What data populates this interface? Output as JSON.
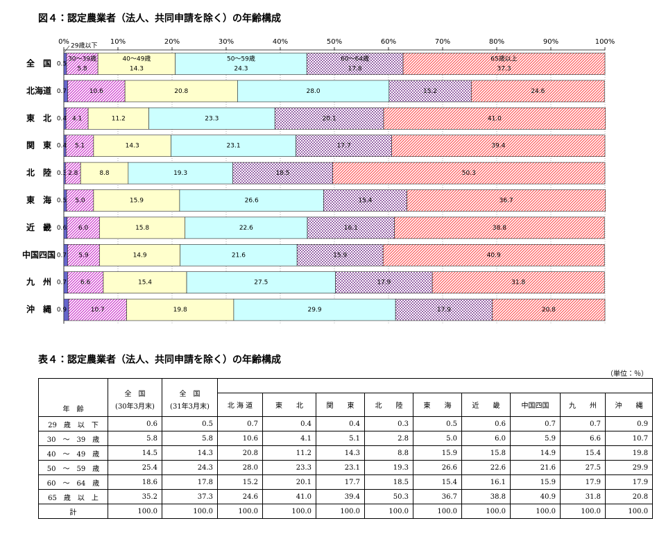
{
  "chart_data": {
    "type": "stacked-bar-horizontal",
    "title": "図４：認定農業者（法人、共同申請を除く）の年齢構成",
    "categories": [
      "全　国",
      "北海道",
      "東　北",
      "関　東",
      "北　陸",
      "東　海",
      "近　畿",
      "中国四国",
      "九　州",
      "沖　縄"
    ],
    "xlim": [
      0,
      100
    ],
    "xticks": [
      {
        "value": 0,
        "label": "0%"
      },
      {
        "value": 10,
        "label": "10%"
      },
      {
        "value": 20,
        "label": "20%"
      },
      {
        "value": 30,
        "label": "30%"
      },
      {
        "value": 40,
        "label": "40%"
      },
      {
        "value": 50,
        "label": "50%"
      },
      {
        "value": 60,
        "label": "60%"
      },
      {
        "value": 70,
        "label": "70%"
      },
      {
        "value": 80,
        "label": "80%"
      },
      {
        "value": 90,
        "label": "90%"
      },
      {
        "value": 100,
        "label": "100%"
      }
    ],
    "grid": true,
    "series": [
      {
        "name": "29歳以下",
        "color": "#6666cc",
        "pattern": null,
        "values": [
          0.5,
          0.7,
          0.4,
          0.4,
          0.3,
          0.5,
          0.6,
          0.7,
          0.7,
          0.9
        ],
        "value_labels": [
          "0.5",
          "0.7",
          "0.4",
          "0.4",
          "0.3",
          "0.5",
          "0.6",
          "0.7",
          "0.7",
          "0.9"
        ]
      },
      {
        "name": "30～39歳",
        "color": "#cc33cc",
        "pattern": "hatch",
        "values": [
          5.8,
          10.6,
          4.1,
          5.1,
          2.8,
          5.0,
          6.0,
          5.9,
          6.6,
          10.7
        ],
        "value_labels": [
          "5.8",
          "10.6",
          "4.1",
          "5.1",
          "2.8",
          "5.0",
          "6.0",
          "5.9",
          "6.6",
          "10.7"
        ]
      },
      {
        "name": "40～49歳",
        "color": "#ffffcc",
        "pattern": null,
        "values": [
          14.3,
          20.8,
          11.2,
          14.3,
          8.8,
          15.9,
          15.8,
          14.9,
          15.4,
          19.8
        ],
        "value_labels": [
          "14.3",
          "20.8",
          "11.2",
          "14.3",
          "8.8",
          "15.9",
          "15.8",
          "14.9",
          "15.4",
          "19.8"
        ]
      },
      {
        "name": "50～59歳",
        "color": "#ccffff",
        "pattern": null,
        "values": [
          24.3,
          28.0,
          23.3,
          23.1,
          19.3,
          26.6,
          22.6,
          21.6,
          27.5,
          29.9
        ],
        "value_labels": [
          "24.3",
          "28.0",
          "23.3",
          "23.1",
          "19.3",
          "26.6",
          "22.6",
          "21.6",
          "27.5",
          "29.9"
        ]
      },
      {
        "name": "60～64歳",
        "color": "#9966aa",
        "pattern": "dots",
        "values": [
          17.8,
          15.2,
          20.1,
          17.7,
          18.5,
          15.4,
          16.1,
          15.9,
          17.9,
          17.9
        ],
        "value_labels": [
          "17.8",
          "15.2",
          "20.1",
          "17.7",
          "18.5",
          "15.4",
          "16.1",
          "15.9",
          "17.9",
          "17.9"
        ]
      },
      {
        "name": "65歳以上",
        "color": "#ff5555",
        "pattern": "hatch",
        "values": [
          37.3,
          24.6,
          41.0,
          39.4,
          50.3,
          36.7,
          38.8,
          40.9,
          31.8,
          20.8
        ],
        "value_labels": [
          "37.3",
          "24.6",
          "41.0",
          "39.4",
          "50.3",
          "36.7",
          "38.8",
          "40.9",
          "31.8",
          "20.8"
        ]
      }
    ]
  },
  "table": {
    "title": "表４：認定農業者（法人、共同申請を除く）の年齢構成",
    "unit": "（単位：％）",
    "corner": "年　齢",
    "columns": [
      "全　国",
      "全　国",
      "北 海 道",
      "東　　北",
      "関　　東",
      "北　　陸",
      "東　　海",
      "近　　畿",
      "中国四国",
      "九　　州",
      "沖　　縄"
    ],
    "column_notes": [
      "(30年3月末)",
      "(31年3月末)"
    ],
    "rows": [
      {
        "label": "29　歳　以　下",
        "cells": [
          "0.6",
          "0.5",
          "0.7",
          "0.4",
          "0.4",
          "0.3",
          "0.5",
          "0.6",
          "0.7",
          "0.7",
          "0.9"
        ]
      },
      {
        "label": "30　～　39　歳",
        "cells": [
          "5.8",
          "5.8",
          "10.6",
          "4.1",
          "5.1",
          "2.8",
          "5.0",
          "6.0",
          "5.9",
          "6.6",
          "10.7"
        ]
      },
      {
        "label": "40　～　49　歳",
        "cells": [
          "14.5",
          "14.3",
          "20.8",
          "11.2",
          "14.3",
          "8.8",
          "15.9",
          "15.8",
          "14.9",
          "15.4",
          "19.8"
        ]
      },
      {
        "label": "50　～　59　歳",
        "cells": [
          "25.4",
          "24.3",
          "28.0",
          "23.3",
          "23.1",
          "19.3",
          "26.6",
          "22.6",
          "21.6",
          "27.5",
          "29.9"
        ]
      },
      {
        "label": "60　～　64　歳",
        "cells": [
          "18.6",
          "17.8",
          "15.2",
          "20.1",
          "17.7",
          "18.5",
          "15.4",
          "16.1",
          "15.9",
          "17.9",
          "17.9"
        ]
      },
      {
        "label": "65　歳　以　上",
        "cells": [
          "35.2",
          "37.3",
          "24.6",
          "41.0",
          "39.4",
          "50.3",
          "36.7",
          "38.8",
          "40.9",
          "31.8",
          "20.8"
        ]
      },
      {
        "label": "計",
        "cells": [
          "100.0",
          "100.0",
          "100.0",
          "100.0",
          "100.0",
          "100.0",
          "100.0",
          "100.0",
          "100.0",
          "100.0",
          "100.0"
        ]
      }
    ]
  }
}
